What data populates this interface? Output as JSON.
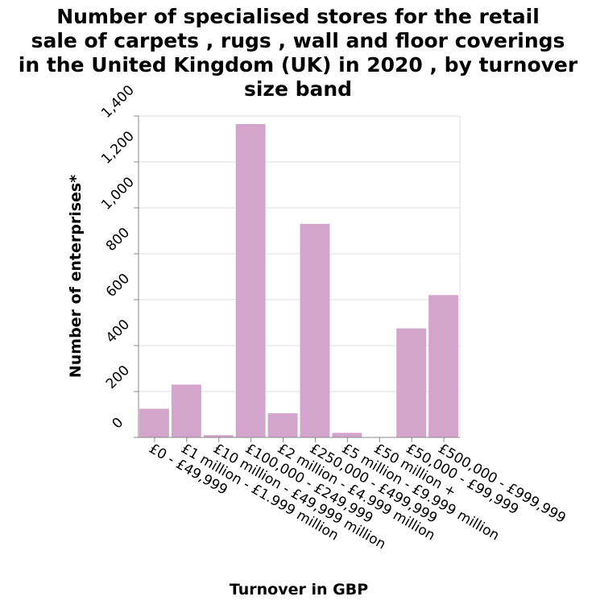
{
  "chart_data": {
    "type": "bar",
    "title_lines": [
      "Number of specialised stores for the retail",
      "sale of carpets , rugs , wall and floor coverings",
      "in the United Kingdom (UK) in 2020 , by turnover",
      "size band"
    ],
    "xlabel": "Turnover in GBP",
    "ylabel": "Number of enterprises*",
    "categories": [
      "£0 - £49,999",
      "£1 million - £1.999 million",
      "£10 million - £49,999 million",
      "£100,000 - £249,999",
      "£2 million - £4.999 million",
      "£250,000 - £499,999",
      "£5 million - £9.999 million",
      "£50 million +",
      "£50,000 - £99,999",
      "£500,000 - £999,999"
    ],
    "values": [
      125,
      230,
      10,
      1365,
      105,
      930,
      20,
      0,
      475,
      620
    ],
    "ylim": [
      0,
      1400
    ],
    "yticks": [
      "0",
      "200",
      "400",
      "600",
      "800",
      "1,000",
      "1,200",
      "1,400"
    ],
    "ytick_values": [
      0,
      200,
      400,
      600,
      800,
      1000,
      1200,
      1400
    ],
    "grid": true,
    "colors": {
      "bar": "#d3a5cd",
      "grid": "#dddddd",
      "axis": "#888888"
    }
  }
}
